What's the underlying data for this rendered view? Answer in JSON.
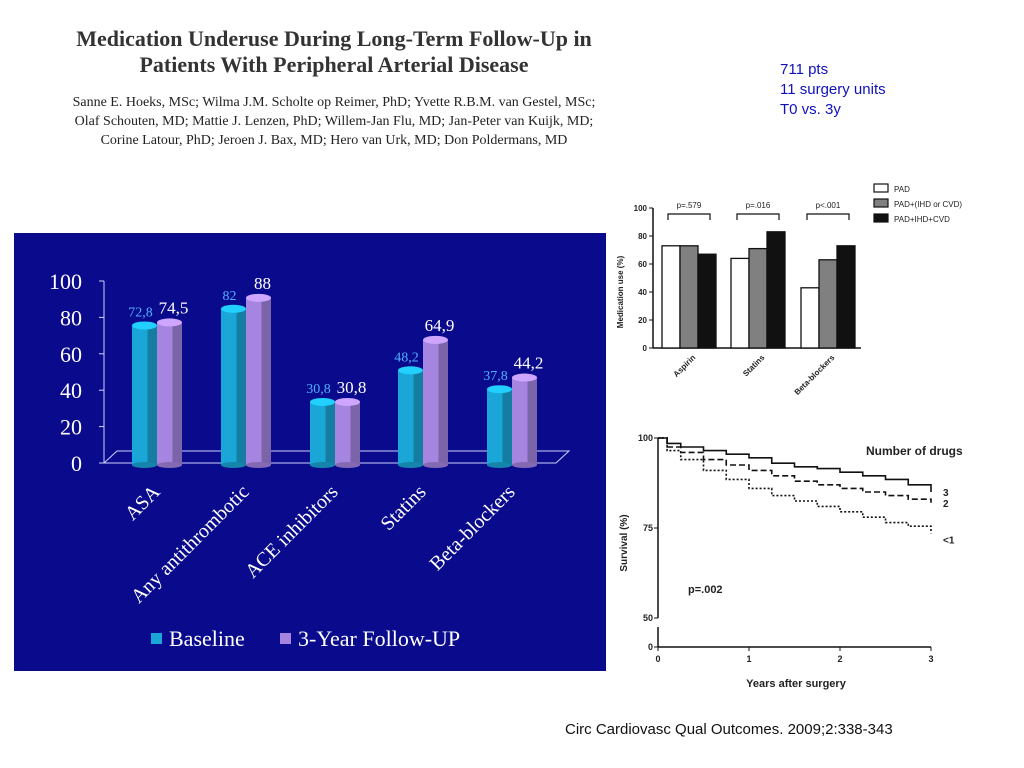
{
  "paper": {
    "title_line1": "Medication Underuse During Long-Term Follow-Up in",
    "title_line2": "Patients With Peripheral Arterial Disease",
    "authors_line1": "Sanne E. Hoeks, MSc; Wilma J.M. Scholte op Reimer, PhD; Yvette R.B.M. van Gestel, MSc;",
    "authors_line2": "Olaf Schouten, MD; Mattie J. Lenzen, PhD; Willem-Jan Flu, MD; Jan-Peter van Kuijk, MD;",
    "authors_line3": "Corine Latour, PhD; Jeroen J. Bax, MD; Hero van Urk, MD; Don Poldermans, MD"
  },
  "study_info": {
    "line1": "711 pts",
    "line2": "11 surgery units",
    "line3": "T0 vs. 3y"
  },
  "citation": "Circ Cardiovasc Qual Outcomes. 2009;2:338-343",
  "colors": {
    "panel_bg": "#0a0a8c",
    "baseline": "#1aa6d6",
    "followup": "#a585e0"
  },
  "chart_data": [
    {
      "type": "bar",
      "categories": [
        "ASA",
        "Any antithrombotic",
        "ACE inhibitors",
        "Statins",
        "Beta-blockers"
      ],
      "series": [
        {
          "name": "Baseline",
          "values": [
            72.8,
            82,
            30.8,
            48.2,
            37.8
          ],
          "labels": [
            "72,8",
            "82",
            "30,8",
            "48,2",
            "37,8"
          ]
        },
        {
          "name": "3-Year Follow-UP",
          "values": [
            74.5,
            88,
            30.8,
            64.9,
            44.2
          ],
          "labels": [
            "74,5",
            "88",
            "30,8",
            "64,9",
            "44,2"
          ]
        }
      ],
      "ylim": [
        0,
        100
      ],
      "yticks": [
        "0",
        "20",
        "40",
        "60",
        "80",
        "100"
      ],
      "legend_position": "bottom",
      "grid": false
    },
    {
      "type": "bar",
      "categories": [
        "Aspirin",
        "Statins",
        "Beta-blockers"
      ],
      "series": [
        {
          "name": "PAD",
          "values": [
            73,
            64,
            43
          ]
        },
        {
          "name": "PAD+(IHD or CVD)",
          "values": [
            73,
            71,
            63
          ]
        },
        {
          "name": "PAD+IHD+CVD",
          "values": [
            67,
            83,
            73
          ]
        }
      ],
      "p_values": [
        "p=.579",
        "p=.016",
        "p<.001"
      ],
      "ylabel": "Medication use (%)",
      "ylim": [
        0,
        100
      ],
      "yticks": [
        "0",
        "20",
        "40",
        "60",
        "80",
        "100"
      ],
      "legend_position": "top-right",
      "grid": false
    },
    {
      "type": "line",
      "title": "Number of drugs",
      "xlabel": "Years after surgery",
      "ylabel": "Survival (%)",
      "xticks": [
        "0",
        "1",
        "2",
        "3"
      ],
      "yticks": [
        "0",
        "50",
        "75",
        "100"
      ],
      "annotation": "p=.002",
      "series": [
        {
          "name": "3",
          "x": [
            0,
            0.1,
            0.25,
            0.5,
            0.75,
            1.0,
            1.25,
            1.5,
            1.75,
            2.0,
            2.25,
            2.5,
            2.75,
            3.0
          ],
          "y": [
            100,
            98.5,
            97.5,
            96.5,
            95.5,
            94.5,
            93,
            92,
            91.5,
            90.5,
            89.5,
            88.5,
            87,
            85
          ]
        },
        {
          "name": "2",
          "x": [
            0,
            0.1,
            0.25,
            0.5,
            0.75,
            1.0,
            1.25,
            1.5,
            1.75,
            2.0,
            2.25,
            2.5,
            2.75,
            3.0
          ],
          "y": [
            100,
            97.5,
            96,
            94,
            92.5,
            91,
            89.5,
            88,
            87,
            86,
            85,
            84,
            83,
            82
          ]
        },
        {
          "name": "<1",
          "x": [
            0,
            0.1,
            0.25,
            0.5,
            0.75,
            1.0,
            1.25,
            1.5,
            1.75,
            2.0,
            2.25,
            2.5,
            2.75,
            3.0
          ],
          "y": [
            100,
            96.5,
            94,
            91,
            88.5,
            86,
            84,
            82.5,
            81,
            79.5,
            78,
            76.5,
            75.5,
            73.5
          ]
        }
      ]
    }
  ]
}
